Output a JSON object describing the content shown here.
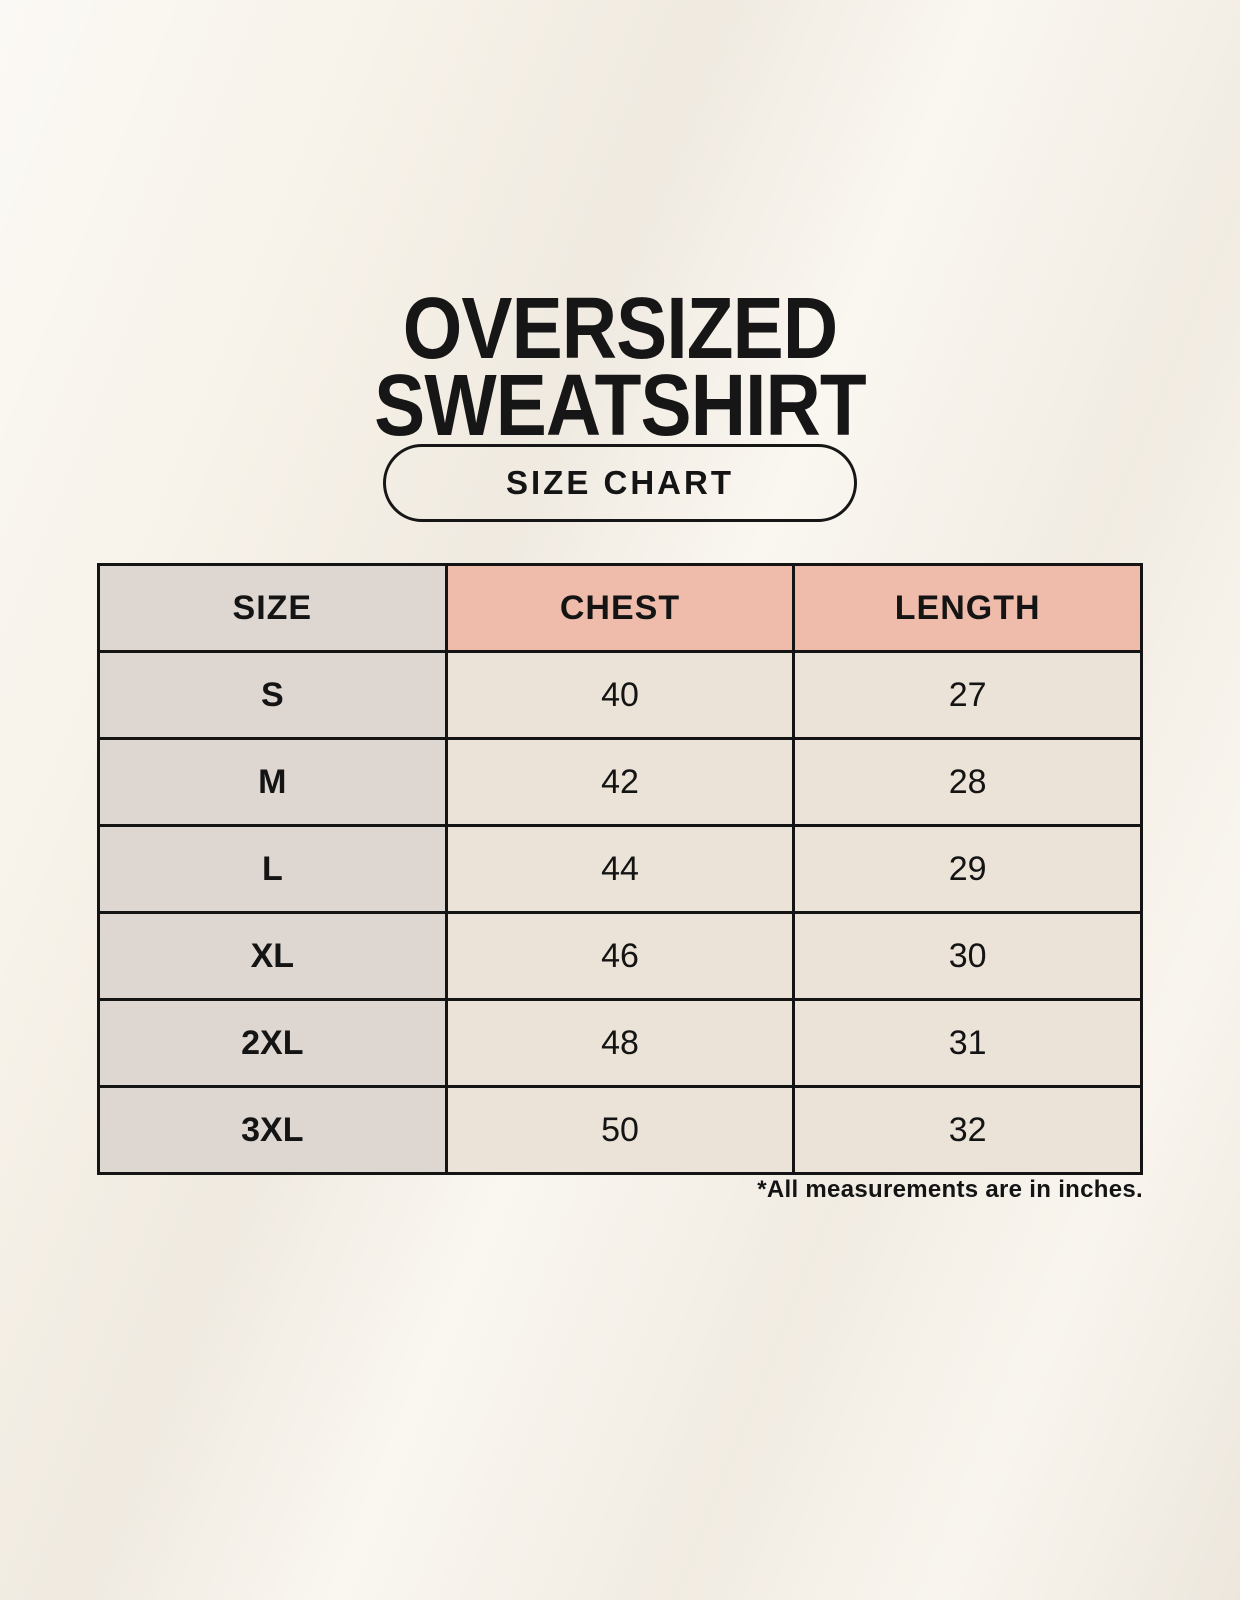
{
  "header": {
    "title_line1": "OVERSIZED",
    "title_line2": "SWEATSHIRT",
    "badge_label": "SIZE CHART"
  },
  "table": {
    "columns": [
      "SIZE",
      "CHEST",
      "LENGTH"
    ],
    "rows": [
      [
        "S",
        "40",
        "27"
      ],
      [
        "M",
        "42",
        "28"
      ],
      [
        "L",
        "44",
        "29"
      ],
      [
        "XL",
        "46",
        "30"
      ],
      [
        "2XL",
        "48",
        "31"
      ],
      [
        "3XL",
        "50",
        "32"
      ]
    ],
    "note": "*All measurements are in inches."
  },
  "colors": {
    "background": "#f7f2e9",
    "header_accent_pink": "#efbcab",
    "label_column_gray": "#ded6d1",
    "data_cell_cream": "#ebe3d7",
    "border_black": "#141414",
    "text_black": "#141414"
  },
  "chart_data": {
    "type": "table",
    "title": "OVERSIZED SWEATSHIRT",
    "subtitle": "SIZE CHART",
    "columns": [
      "SIZE",
      "CHEST",
      "LENGTH"
    ],
    "rows": [
      {
        "size": "S",
        "chest": 40,
        "length": 27
      },
      {
        "size": "M",
        "chest": 42,
        "length": 28
      },
      {
        "size": "L",
        "chest": 44,
        "length": 29
      },
      {
        "size": "XL",
        "chest": 46,
        "length": 30
      },
      {
        "size": "2XL",
        "chest": 48,
        "length": 31
      },
      {
        "size": "3XL",
        "chest": 50,
        "length": 32
      }
    ],
    "units": "inches",
    "annotations": [
      "*All measurements are in inches."
    ]
  }
}
